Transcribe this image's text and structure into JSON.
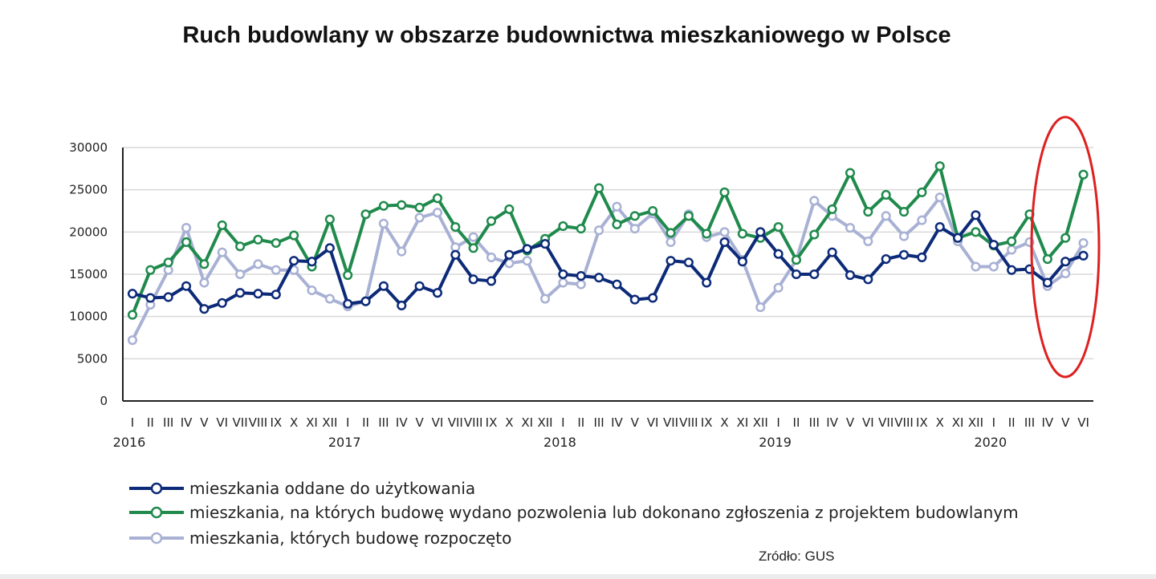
{
  "chart_data": {
    "type": "line",
    "title": "Ruch budowlany w obszarze budownictwa mieszkaniowego w Polsce",
    "xlabel": "",
    "ylabel": "",
    "ylim": [
      0,
      30000
    ],
    "yticks": [
      0,
      5000,
      10000,
      15000,
      20000,
      25000,
      30000
    ],
    "grid": true,
    "legend": "bottom-left",
    "months": [
      "I",
      "II",
      "III",
      "IV",
      "V",
      "VI",
      "VII",
      "VIII",
      "IX",
      "X",
      "XI",
      "XII",
      "I",
      "II",
      "III",
      "IV",
      "V",
      "VI",
      "VII",
      "VIII",
      "IX",
      "X",
      "XI",
      "XII",
      "I",
      "II",
      "III",
      "IV",
      "V",
      "VI",
      "VII",
      "VIII",
      "IX",
      "X",
      "XI",
      "XII",
      "I",
      "II",
      "III",
      "IV",
      "V",
      "VI",
      "VII",
      "VIII",
      "IX",
      "X",
      "XI",
      "XII",
      "I",
      "II",
      "III",
      "IV",
      "V",
      "VI"
    ],
    "years": [
      {
        "label": "2016",
        "index": 0
      },
      {
        "label": "2017",
        "index": 12
      },
      {
        "label": "2018",
        "index": 24
      },
      {
        "label": "2019",
        "index": 36
      },
      {
        "label": "2020",
        "index": 48
      }
    ],
    "series": [
      {
        "name": "mieszkania oddane do użytkowania",
        "color": "#0c2a78",
        "values": [
          12700,
          12200,
          12300,
          13600,
          10900,
          11600,
          12800,
          12700,
          12600,
          16600,
          16500,
          18100,
          11500,
          11800,
          13600,
          11300,
          13600,
          12800,
          17300,
          14400,
          14200,
          17300,
          18000,
          18600,
          15000,
          14800,
          14600,
          13800,
          12000,
          12200,
          16600,
          16400,
          14000,
          18800,
          16500,
          20000,
          17400,
          15000,
          15000,
          17600,
          14900,
          14400,
          16800,
          17300,
          17000,
          20600,
          19300,
          22000,
          18500,
          15500,
          15600,
          14000,
          16500,
          17200
        ]
      },
      {
        "name": "mieszkania, na których budowę wydano pozwolenia lub dokonano zgłoszenia z projektem budowlanym",
        "color": "#1f8a4c",
        "values": [
          10200,
          15500,
          16400,
          18800,
          16200,
          20800,
          18300,
          19100,
          18700,
          19600,
          15900,
          21500,
          14900,
          22100,
          23100,
          23200,
          22900,
          24000,
          20600,
          18100,
          21300,
          22700,
          17800,
          19200,
          20700,
          20400,
          25200,
          20900,
          21900,
          22500,
          19900,
          21900,
          19800,
          24700,
          19800,
          19300,
          20600,
          16700,
          19700,
          22700,
          27000,
          22400,
          24400,
          22400,
          24700,
          27800,
          19300,
          20000,
          18400,
          18900,
          22100,
          16800,
          19300,
          26800
        ]
      },
      {
        "name": "mieszkania, których budowę rozpoczęto",
        "color": "#a8b1d4",
        "values": [
          7200,
          11400,
          15500,
          20500,
          14000,
          17600,
          15000,
          16200,
          15500,
          15500,
          13100,
          12100,
          11200,
          11800,
          21000,
          17700,
          21700,
          22300,
          18200,
          19400,
          17000,
          16300,
          16600,
          12100,
          14000,
          13800,
          20200,
          23000,
          20400,
          22200,
          18800,
          22100,
          19400,
          20000,
          16700,
          11100,
          13400,
          16700,
          23700,
          21900,
          20500,
          18900,
          21900,
          19500,
          21400,
          24100,
          18900,
          15900,
          15900,
          17900,
          18800,
          13600,
          15100,
          18700
        ]
      }
    ],
    "source": "Zródło: GUS",
    "highlight_note": "red ellipse around 2020 IV–VI"
  }
}
